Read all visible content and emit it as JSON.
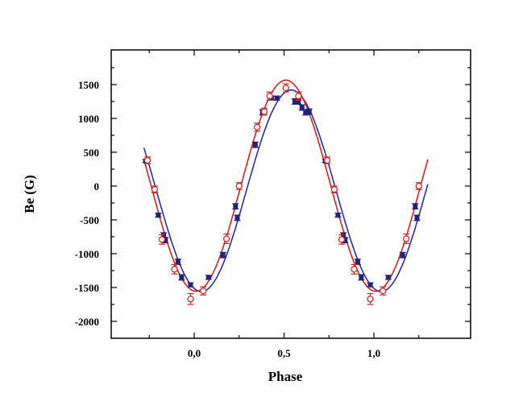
{
  "chart_data": {
    "type": "scatter",
    "xlabel": "Phase",
    "ylabel": "Be (G)",
    "xlim": [
      -0.45,
      1.5
    ],
    "ylim": [
      -2200,
      2000
    ],
    "x_ticks": [
      0.0,
      0.5,
      1.0
    ],
    "x_tick_labels": [
      "0,0",
      "0,5",
      "1,0"
    ],
    "y_ticks": [
      1500,
      1000,
      500,
      0,
      -500,
      -1000,
      -1500,
      -2000
    ],
    "y_tick_labels": [
      "1500",
      "1000",
      "500",
      "0",
      "-500",
      "-1000",
      "-1500",
      "-2000"
    ],
    "grid": false,
    "legend": "none",
    "series": [
      {
        "kind": "scatter",
        "marker": "filled-square",
        "color": "#1f237a",
        "points": [
          [
            -0.27,
            370
          ],
          [
            -0.2,
            -430
          ],
          [
            -0.17,
            -730
          ],
          [
            -0.16,
            -800
          ],
          [
            -0.09,
            -1120
          ],
          [
            -0.07,
            -1350
          ],
          [
            -0.02,
            -1460
          ],
          [
            0.08,
            -1350
          ],
          [
            0.16,
            -1020
          ],
          [
            0.23,
            -300
          ],
          [
            0.24,
            -470
          ],
          [
            0.34,
            610
          ],
          [
            0.38,
            1090
          ],
          [
            0.43,
            1300
          ],
          [
            0.46,
            1300
          ],
          [
            0.56,
            1250
          ],
          [
            0.58,
            1250
          ],
          [
            0.6,
            1160
          ],
          [
            0.62,
            1090
          ],
          [
            0.64,
            1100
          ],
          [
            0.73,
            370
          ],
          [
            0.8,
            -430
          ],
          [
            0.83,
            -730
          ],
          [
            0.84,
            -800
          ],
          [
            0.91,
            -1120
          ],
          [
            0.93,
            -1350
          ],
          [
            0.98,
            -1460
          ],
          [
            1.08,
            -1350
          ],
          [
            1.16,
            -1020
          ],
          [
            1.23,
            -300
          ],
          [
            1.24,
            -470
          ]
        ],
        "errors": [
          20,
          30,
          40,
          40,
          40,
          40,
          30,
          30,
          40,
          40,
          40,
          40,
          40,
          30,
          30,
          40,
          40,
          40,
          40,
          40,
          20,
          30,
          40,
          40,
          40,
          40,
          30,
          30,
          40,
          40,
          40
        ]
      },
      {
        "kind": "scatter",
        "marker": "open-circle",
        "color": "#d42a2a",
        "points": [
          [
            -0.26,
            380
          ],
          [
            -0.22,
            -50
          ],
          [
            -0.18,
            -790
          ],
          [
            -0.11,
            -1230
          ],
          [
            -0.02,
            -1670
          ],
          [
            0.05,
            -1550
          ],
          [
            0.18,
            -780
          ],
          [
            0.25,
            0
          ],
          [
            0.35,
            870
          ],
          [
            0.39,
            1100
          ],
          [
            0.42,
            1330
          ],
          [
            0.51,
            1450
          ],
          [
            0.58,
            1330
          ],
          [
            0.74,
            380
          ],
          [
            0.78,
            -50
          ],
          [
            0.82,
            -790
          ],
          [
            0.89,
            -1230
          ],
          [
            0.98,
            -1670
          ],
          [
            1.05,
            -1550
          ],
          [
            1.18,
            -780
          ],
          [
            1.25,
            0
          ]
        ],
        "errors": [
          50,
          50,
          70,
          70,
          80,
          60,
          70,
          50,
          60,
          50,
          60,
          60,
          60,
          50,
          50,
          70,
          70,
          80,
          60,
          70,
          50
        ]
      },
      {
        "kind": "line",
        "color": "#2b2ea8",
        "fit": {
          "b0": -70,
          "b1": 1490,
          "phi0": 0.54
        },
        "x_range": [
          -0.28,
          1.3
        ]
      },
      {
        "kind": "line",
        "color": "#e02020",
        "fit": {
          "b0": 5,
          "b1": 1560,
          "phi0": 0.51
        },
        "x_range": [
          -0.28,
          1.3
        ]
      }
    ]
  }
}
